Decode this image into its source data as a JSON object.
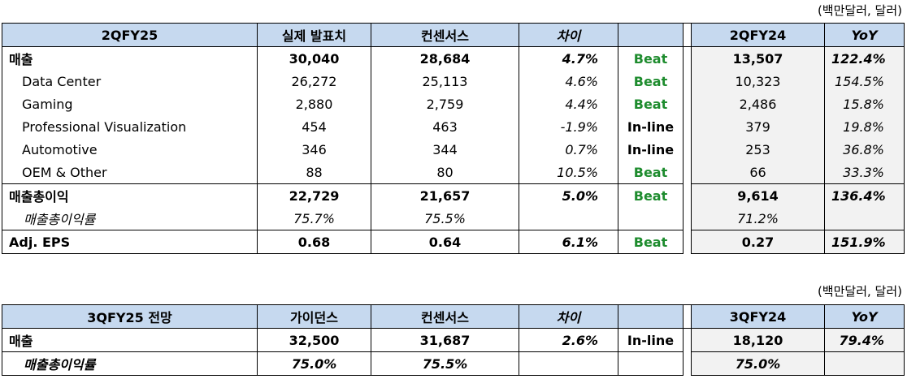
{
  "unit_note": "(백만달러, 달러)",
  "table1": {
    "headers": [
      "2QFY25",
      "실제 발표치",
      "컨센서스",
      "차이",
      "",
      "2QFY24",
      "YoY"
    ],
    "rows": [
      {
        "label": "매출",
        "actual": "30,040",
        "consensus": "28,684",
        "diff": "4.7%",
        "status": "Beat",
        "prior": "13,507",
        "yoy": "122.4%"
      },
      {
        "label": "Data Center",
        "actual": "26,272",
        "consensus": "25,113",
        "diff": "4.6%",
        "status": "Beat",
        "prior": "10,323",
        "yoy": "154.5%"
      },
      {
        "label": "Gaming",
        "actual": "2,880",
        "consensus": "2,759",
        "diff": "4.4%",
        "status": "Beat",
        "prior": "2,486",
        "yoy": "15.8%"
      },
      {
        "label": "Professional Visualization",
        "actual": "454",
        "consensus": "463",
        "diff": "-1.9%",
        "status": "In-line",
        "prior": "379",
        "yoy": "19.8%"
      },
      {
        "label": "Automotive",
        "actual": "346",
        "consensus": "344",
        "diff": "0.7%",
        "status": "In-line",
        "prior": "253",
        "yoy": "36.8%"
      },
      {
        "label": "OEM & Other",
        "actual": "88",
        "consensus": "80",
        "diff": "10.5%",
        "status": "Beat",
        "prior": "66",
        "yoy": "33.3%"
      },
      {
        "label": "매출총이익",
        "actual": "22,729",
        "consensus": "21,657",
        "diff": "5.0%",
        "status": "Beat",
        "prior": "9,614",
        "yoy": "136.4%"
      },
      {
        "label": "매출총이익률",
        "actual": "75.7%",
        "consensus": "75.5%",
        "diff": "",
        "status": "",
        "prior": "71.2%",
        "yoy": ""
      },
      {
        "label": "Adj. EPS",
        "actual": "0.68",
        "consensus": "0.64",
        "diff": "6.1%",
        "status": "Beat",
        "prior": "0.27",
        "yoy": "151.9%"
      }
    ]
  },
  "table2": {
    "headers": [
      "3QFY25 전망",
      "가이던스",
      "컨센서스",
      "차이",
      "",
      "3QFY24",
      "YoY"
    ],
    "rows": [
      {
        "label": "매출",
        "guidance": "32,500",
        "consensus": "31,687",
        "diff": "2.6%",
        "status": "In-line",
        "prior": "18,120",
        "yoy": "79.4%"
      },
      {
        "label": "매출총이익률",
        "guidance": "75.0%",
        "consensus": "75.5%",
        "diff": "",
        "status": "",
        "prior": "75.0%",
        "yoy": ""
      }
    ]
  },
  "colors": {
    "header_bg": "#c6d9ef",
    "beat_text": "#1e8c2e",
    "shaded_bg": "#f2f2f2"
  }
}
